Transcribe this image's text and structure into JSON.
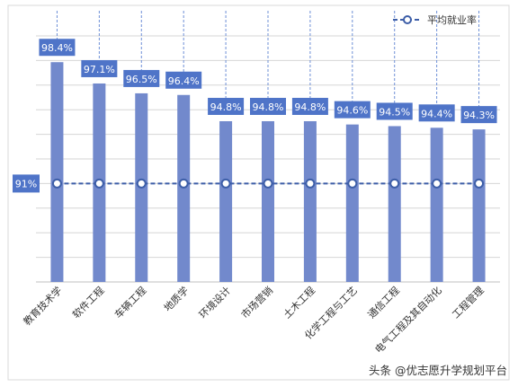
{
  "chart_data": {
    "type": "bar",
    "categories": [
      "教育技术学",
      "软件工程",
      "车辆工程",
      "地质学",
      "环境设计",
      "市场营销",
      "土木工程",
      "化学工程与工艺",
      "通信工程",
      "电气工程及其自动化",
      "工程管理"
    ],
    "values": [
      98.4,
      97.1,
      96.5,
      96.4,
      94.8,
      94.8,
      94.8,
      94.6,
      94.5,
      94.4,
      94.3
    ],
    "value_labels": [
      "98.4%",
      "97.1%",
      "96.5%",
      "96.4%",
      "94.8%",
      "94.8%",
      "94.8%",
      "94.6%",
      "94.5%",
      "94.4%",
      "94.3%"
    ],
    "average": {
      "name": "平均就业率",
      "value": 91,
      "label": "91%"
    },
    "ylim": [
      85,
      100
    ],
    "grid": true,
    "legend": "top-right",
    "colors": {
      "bar": "#7289cc",
      "label_box": "#4f74c8",
      "label_text": "#ffffff",
      "average_line": "#3d5ea8",
      "grid": "#d6d6d6",
      "axis_text": "#333333"
    }
  },
  "watermark": "头条 @优志愿升学规划平台"
}
